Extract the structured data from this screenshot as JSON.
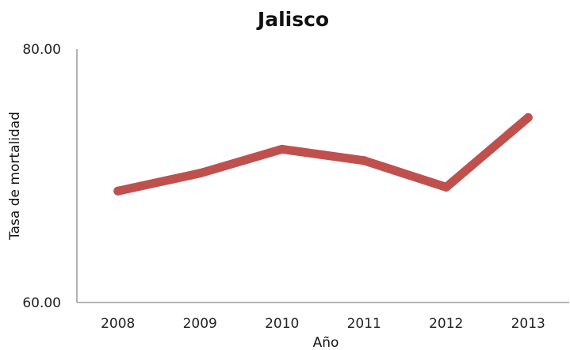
{
  "chart_data": {
    "type": "line",
    "title": "Jalisco",
    "xlabel": "Año",
    "ylabel": "Tasa de mortalidad",
    "categories": [
      "2008",
      "2009",
      "2010",
      "2011",
      "2012",
      "2013"
    ],
    "series": [
      {
        "values": [
          68.8,
          70.2,
          72.1,
          71.2,
          69.1,
          74.6
        ]
      }
    ],
    "ylim": [
      60,
      80
    ],
    "yticks": [
      "60.00",
      "80.00"
    ],
    "grid": false,
    "legend": "none",
    "colors": {
      "series": "#c0504d",
      "axis": "#8a8a8a"
    }
  }
}
